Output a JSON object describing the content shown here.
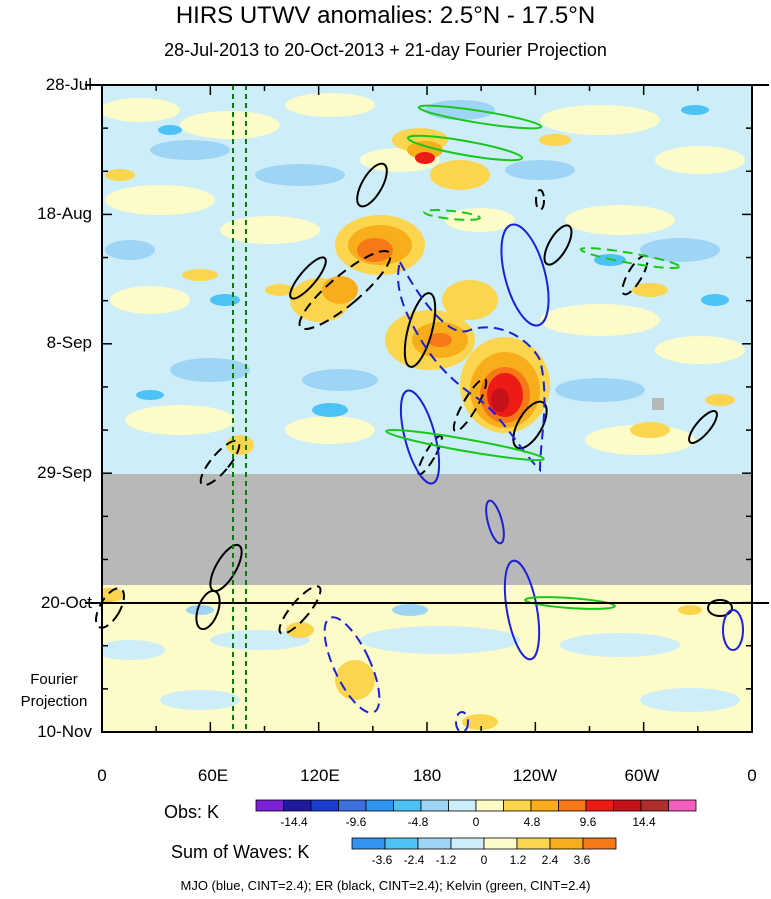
{
  "chart_data": {
    "type": "heatmap",
    "title": "HIRS UTWV anomalies: 2.5°N - 17.5°N",
    "subtitle": "28-Jul-2013 to 20-Oct-2013 + 21-day Fourier Projection",
    "y_tick_labels": [
      "28-Jul",
      "18-Aug",
      "8-Sep",
      "29-Sep",
      "20-Oct",
      "10-Nov"
    ],
    "x_tick_labels": [
      "0",
      "60E",
      "120E",
      "180",
      "120W",
      "60W",
      "0"
    ],
    "x_range_deg_east": [
      0,
      360
    ],
    "fourier_label_lines": [
      "Fourier",
      "Projection"
    ],
    "missing_data_band": {
      "from": "29-Sep",
      "to": "17-Oct"
    },
    "reference_lines": {
      "fourier_start": "20-Oct",
      "dashed_green_lon_deg_east": [
        70,
        77
      ]
    },
    "obs_colorbar": {
      "title": "Obs: K",
      "colors": [
        "#7b22d6",
        "#1f1a9e",
        "#1b3ccc",
        "#3f6fdd",
        "#2f95f0",
        "#4cc2f5",
        "#9ed5f5",
        "#cdeef9",
        "#fdfbc8",
        "#fbd54d",
        "#f8ae1a",
        "#f67817",
        "#ee1a16",
        "#c4111a",
        "#b02e2e",
        "#f25fbf"
      ],
      "tick_labels": [
        "-14.4",
        "-9.6",
        "-4.8",
        "0",
        "4.8",
        "9.6",
        "14.4"
      ]
    },
    "waves_colorbar": {
      "title": "Sum of Waves: K",
      "colors": [
        "#2f95f0",
        "#4cc2f5",
        "#9ed5f5",
        "#cdeef9",
        "#fdfbc8",
        "#fbd54d",
        "#f8ae1a",
        "#f67817"
      ],
      "tick_labels": [
        "-3.6",
        "-2.4",
        "-1.2",
        "0",
        "1.2",
        "2.4",
        "3.6"
      ]
    },
    "contours": [
      {
        "name": "MJO",
        "color": "#1c22d4",
        "cint": 2.4
      },
      {
        "name": "ER",
        "color": "#000000",
        "cint": 2.4
      },
      {
        "name": "Kelvin",
        "color": "#18c818",
        "cint": 2.4
      }
    ],
    "grid": false
  },
  "caption": "MJO (blue, CINT=2.4); ER (black, CINT=2.4); Kelvin (green, CINT=2.4)"
}
